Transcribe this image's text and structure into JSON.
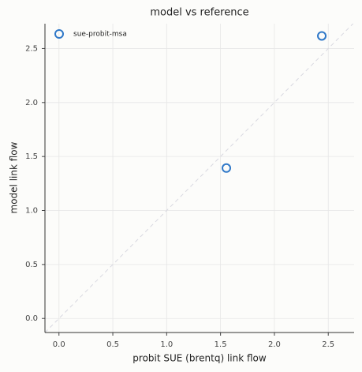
{
  "chart_data": {
    "type": "scatter",
    "title": "model vs reference",
    "x_label": "probit SUE (brentq) link flow",
    "y_label": "model link flow",
    "series": [
      {
        "name": "sue-probit-msa",
        "color": "#2f78c8",
        "x": [
          1.554,
          2.44
        ],
        "values": [
          1.393,
          2.617
        ]
      }
    ],
    "xlim": [
      -0.13,
      2.74
    ],
    "ylim": [
      -0.13,
      2.73
    ],
    "xticks": [
      {
        "value": 0,
        "label": "0.0"
      },
      {
        "value": 0.5,
        "label": "0.5"
      },
      {
        "value": 1,
        "label": "1.0"
      },
      {
        "value": 1.5,
        "label": "1.5"
      },
      {
        "value": 2,
        "label": "2.0"
      },
      {
        "value": 2.5,
        "label": "2.5"
      }
    ],
    "yticks": [
      {
        "value": 0,
        "label": "0.0"
      },
      {
        "value": 0.5,
        "label": "0.5"
      },
      {
        "value": 1,
        "label": "1.0"
      },
      {
        "value": 1.5,
        "label": "1.5"
      },
      {
        "value": 2,
        "label": "2.0"
      },
      {
        "value": 2.5,
        "label": "2.5"
      }
    ],
    "grid": true,
    "legend": "upper-left"
  }
}
